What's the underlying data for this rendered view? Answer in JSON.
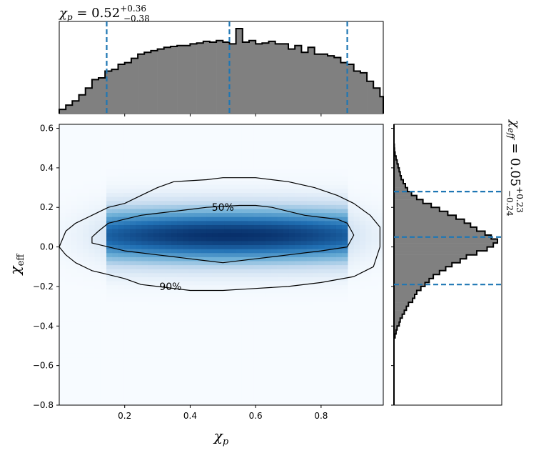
{
  "chart_data": {
    "type": "corner_plot",
    "top_panel": {
      "type": "histogram",
      "title": {
        "symbol": "χ",
        "sub": "p",
        "value": " = 0.52",
        "sup": "+0.36",
        "sub2": "−0.38"
      },
      "xlim": [
        0.0,
        0.99
      ],
      "bins_x": [
        0.0,
        0.02,
        0.04,
        0.06,
        0.08,
        0.1,
        0.12,
        0.14,
        0.16,
        0.18,
        0.2,
        0.22,
        0.24,
        0.26,
        0.28,
        0.3,
        0.32,
        0.34,
        0.36,
        0.38,
        0.4,
        0.42,
        0.44,
        0.46,
        0.48,
        0.5,
        0.52,
        0.54,
        0.56,
        0.58,
        0.6,
        0.62,
        0.64,
        0.66,
        0.68,
        0.7,
        0.72,
        0.74,
        0.76,
        0.78,
        0.8,
        0.82,
        0.84,
        0.86,
        0.88,
        0.9,
        0.92,
        0.94,
        0.96,
        0.98
      ],
      "counts": [
        0.05,
        0.1,
        0.15,
        0.22,
        0.3,
        0.4,
        0.42,
        0.5,
        0.52,
        0.58,
        0.6,
        0.65,
        0.7,
        0.72,
        0.74,
        0.76,
        0.78,
        0.79,
        0.8,
        0.8,
        0.82,
        0.83,
        0.85,
        0.84,
        0.86,
        0.84,
        0.82,
        1.0,
        0.84,
        0.86,
        0.82,
        0.83,
        0.85,
        0.82,
        0.82,
        0.76,
        0.8,
        0.72,
        0.78,
        0.7,
        0.7,
        0.68,
        0.66,
        0.6,
        0.58,
        0.5,
        0.48,
        0.38,
        0.3,
        0.2
      ],
      "quantile_lines": [
        0.145,
        0.52,
        0.88
      ]
    },
    "main_panel": {
      "type": "heatmap",
      "xlabel": {
        "symbol": "χ",
        "sub": "p"
      },
      "ylabel": {
        "symbol": "χ",
        "sub": "eff"
      },
      "xlim": [
        0.0,
        0.99
      ],
      "ylim": [
        -0.8,
        0.62
      ],
      "xticks": [
        "0.2",
        "0.4",
        "0.6",
        "0.8"
      ],
      "xtick_values": [
        0.2,
        0.4,
        0.6,
        0.8
      ],
      "yticks": [
        "−0.8",
        "−0.6",
        "−0.4",
        "−0.2",
        "0.0",
        "0.2",
        "0.4",
        "0.6"
      ],
      "ytick_values": [
        -0.8,
        -0.6,
        -0.4,
        -0.2,
        0.0,
        0.2,
        0.4,
        0.6
      ],
      "density": {
        "mean_x": 0.52,
        "mean_y": 0.06,
        "sigma_x": 0.32,
        "sigma_y": 0.1
      },
      "contours": [
        {
          "label": "50%",
          "label_at": [
            0.5,
            0.2
          ],
          "points": [
            [
              0.1,
              0.05
            ],
            [
              0.12,
              0.08
            ],
            [
              0.15,
              0.12
            ],
            [
              0.2,
              0.14
            ],
            [
              0.25,
              0.16
            ],
            [
              0.3,
              0.17
            ],
            [
              0.35,
              0.18
            ],
            [
              0.4,
              0.19
            ],
            [
              0.45,
              0.2
            ],
            [
              0.55,
              0.21
            ],
            [
              0.6,
              0.21
            ],
            [
              0.65,
              0.2
            ],
            [
              0.7,
              0.18
            ],
            [
              0.75,
              0.16
            ],
            [
              0.8,
              0.15
            ],
            [
              0.85,
              0.14
            ],
            [
              0.88,
              0.12
            ],
            [
              0.9,
              0.06
            ],
            [
              0.88,
              0.0
            ],
            [
              0.8,
              -0.02
            ],
            [
              0.7,
              -0.04
            ],
            [
              0.6,
              -0.06
            ],
            [
              0.5,
              -0.08
            ],
            [
              0.45,
              -0.07
            ],
            [
              0.35,
              -0.05
            ],
            [
              0.3,
              -0.04
            ],
            [
              0.2,
              -0.02
            ],
            [
              0.15,
              0.0
            ],
            [
              0.1,
              0.02
            ]
          ]
        },
        {
          "label": "90%",
          "label_at": [
            0.34,
            -0.2
          ],
          "points": [
            [
              0.0,
              0.0
            ],
            [
              0.02,
              0.08
            ],
            [
              0.05,
              0.12
            ],
            [
              0.1,
              0.16
            ],
            [
              0.15,
              0.2
            ],
            [
              0.2,
              0.22
            ],
            [
              0.25,
              0.26
            ],
            [
              0.3,
              0.3
            ],
            [
              0.35,
              0.33
            ],
            [
              0.45,
              0.34
            ],
            [
              0.5,
              0.35
            ],
            [
              0.6,
              0.35
            ],
            [
              0.7,
              0.33
            ],
            [
              0.78,
              0.3
            ],
            [
              0.85,
              0.26
            ],
            [
              0.9,
              0.22
            ],
            [
              0.95,
              0.16
            ],
            [
              0.98,
              0.1
            ],
            [
              0.98,
              0.0
            ],
            [
              0.96,
              -0.1
            ],
            [
              0.9,
              -0.15
            ],
            [
              0.8,
              -0.18
            ],
            [
              0.7,
              -0.2
            ],
            [
              0.6,
              -0.21
            ],
            [
              0.5,
              -0.22
            ],
            [
              0.4,
              -0.22
            ],
            [
              0.3,
              -0.2
            ],
            [
              0.25,
              -0.19
            ],
            [
              0.2,
              -0.16
            ],
            [
              0.15,
              -0.14
            ],
            [
              0.1,
              -0.12
            ],
            [
              0.05,
              -0.08
            ],
            [
              0.02,
              -0.04
            ]
          ]
        }
      ]
    },
    "right_panel": {
      "type": "histogram",
      "orientation": "horizontal",
      "title": {
        "symbol": "χ",
        "sub": "eff",
        "value": " = 0.05",
        "sup": "+0.23",
        "sub2": "−0.24"
      },
      "ylim": [
        -0.8,
        0.62
      ],
      "bins_y": [
        -0.46,
        -0.44,
        -0.42,
        -0.4,
        -0.38,
        -0.36,
        -0.34,
        -0.32,
        -0.3,
        -0.28,
        -0.26,
        -0.24,
        -0.22,
        -0.2,
        -0.18,
        -0.16,
        -0.14,
        -0.12,
        -0.1,
        -0.08,
        -0.06,
        -0.04,
        -0.02,
        0.0,
        0.02,
        0.04,
        0.06,
        0.08,
        0.1,
        0.12,
        0.14,
        0.16,
        0.18,
        0.2,
        0.22,
        0.24,
        0.26,
        0.28,
        0.3,
        0.32,
        0.34,
        0.36,
        0.38,
        0.4,
        0.42,
        0.44,
        0.46,
        0.48,
        0.5
      ],
      "counts": [
        0.01,
        0.02,
        0.03,
        0.05,
        0.06,
        0.08,
        0.1,
        0.12,
        0.14,
        0.18,
        0.2,
        0.22,
        0.26,
        0.3,
        0.34,
        0.38,
        0.44,
        0.5,
        0.56,
        0.64,
        0.7,
        0.8,
        0.9,
        0.96,
        1.0,
        0.94,
        0.88,
        0.8,
        0.74,
        0.68,
        0.6,
        0.52,
        0.44,
        0.36,
        0.28,
        0.22,
        0.17,
        0.13,
        0.11,
        0.09,
        0.07,
        0.06,
        0.05,
        0.04,
        0.03,
        0.02,
        0.01,
        0.005,
        0.003
      ],
      "quantile_lines": [
        -0.19,
        0.05,
        0.28
      ]
    },
    "colors": {
      "hist_fill": "#808080",
      "hist_edge": "#000000",
      "quantile": "#1f77b4",
      "cmap_low": "#f7fbff",
      "cmap_high": "#08306b"
    }
  }
}
